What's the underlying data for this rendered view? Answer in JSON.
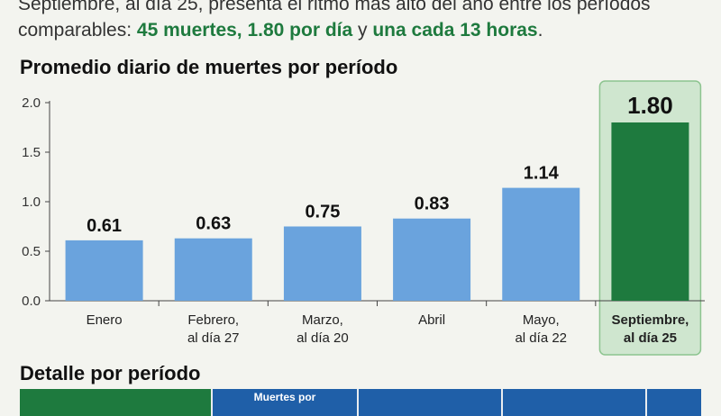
{
  "intro": {
    "line1": "Septiembre, al día 25, presenta el ritmo más alto del año entre los períodos",
    "line2_a": "comparables: ",
    "line2_hl1": "45 muertes, 1.80 por día",
    "line2_b": " y ",
    "line2_hl2": "una cada 13 horas",
    "line2_c": "."
  },
  "chart_title": "Promedio diario de muertes por período",
  "chart_data": {
    "type": "bar",
    "title": "Promedio diario de muertes por período",
    "xlabel": "",
    "ylabel": "",
    "ylim": [
      0,
      2.0
    ],
    "yticks": [
      "0.0",
      "0.5",
      "1.0",
      "1.5",
      "2.0"
    ],
    "grid": false,
    "categories": [
      [
        "Enero"
      ],
      [
        "Febrero,",
        "al día 27"
      ],
      [
        "Marzo,",
        "al día 20"
      ],
      [
        "Abril"
      ],
      [
        "Mayo,",
        "al día 22"
      ],
      [
        "Septiembre,",
        "al día 25"
      ]
    ],
    "values": [
      0.61,
      0.63,
      0.75,
      0.83,
      1.14,
      1.8
    ],
    "value_labels": [
      "0.61",
      "0.63",
      "0.75",
      "0.83",
      "1.14",
      "1.80"
    ],
    "highlight_index": 5,
    "colors": {
      "bar": "#6aa3dd",
      "highlight_bar": "#1e7a3e",
      "highlight_bg": "#cfe6cf",
      "highlight_border": "#8cc48f",
      "axis": "#444444"
    }
  },
  "section2_title": "Detalle por período",
  "table": {
    "header_cells": [
      "",
      "Muertes por",
      "",
      "",
      ""
    ],
    "header_colors": [
      "#1e7a3e",
      "#1f5fa8",
      "#1f5fa8",
      "#1f5fa8",
      "#1f5fa8"
    ]
  }
}
